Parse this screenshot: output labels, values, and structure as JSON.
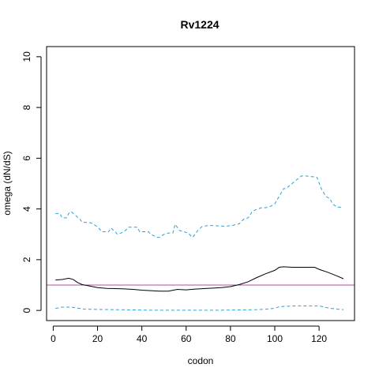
{
  "chart_data": {
    "type": "line",
    "title": "Rv1224",
    "xlabel": "codon",
    "ylabel": "omega (dN/dS)",
    "xlim": [
      -3,
      136
    ],
    "ylim": [
      -0.4,
      10.4
    ],
    "x_ticks": [
      0,
      20,
      40,
      60,
      80,
      100,
      120
    ],
    "y_ticks": [
      0,
      2,
      4,
      6,
      8,
      10
    ],
    "grid": false,
    "reference_line": {
      "y": 1,
      "color": "#b34db3"
    },
    "series": [
      {
        "role": "estimate",
        "style": "solid",
        "color": "#000000",
        "x": [
          1,
          4,
          7,
          9,
          11,
          13,
          16,
          20,
          24,
          28,
          32,
          36,
          40,
          44,
          48,
          52,
          56,
          60,
          64,
          68,
          72,
          76,
          80,
          84,
          88,
          92,
          96,
          100,
          102,
          104,
          108,
          112,
          116,
          118,
          120,
          124,
          128,
          131
        ],
        "y": [
          1.2,
          1.22,
          1.27,
          1.22,
          1.1,
          1.02,
          0.97,
          0.9,
          0.87,
          0.86,
          0.85,
          0.83,
          0.8,
          0.78,
          0.76,
          0.76,
          0.83,
          0.81,
          0.84,
          0.86,
          0.88,
          0.9,
          0.94,
          1.02,
          1.13,
          1.3,
          1.45,
          1.58,
          1.7,
          1.72,
          1.7,
          1.7,
          1.7,
          1.7,
          1.62,
          1.5,
          1.36,
          1.25
        ]
      },
      {
        "role": "upper",
        "style": "dashed",
        "color": "#2aa1dc",
        "x": [
          1,
          3,
          4,
          6,
          7,
          8,
          10,
          12,
          13,
          17,
          18,
          20,
          22,
          25,
          26,
          28,
          29,
          32,
          34,
          38,
          39,
          43,
          44,
          47,
          48,
          50,
          52,
          54,
          55,
          57,
          59,
          61,
          62,
          63,
          65,
          67,
          70,
          78,
          81,
          84,
          86,
          88,
          90,
          94,
          96,
          98,
          100,
          101,
          104,
          105,
          112,
          114,
          119,
          121,
          123,
          125,
          126,
          128,
          131
        ],
        "y": [
          3.82,
          3.82,
          3.65,
          3.65,
          3.82,
          3.9,
          3.75,
          3.6,
          3.48,
          3.45,
          3.4,
          3.3,
          3.1,
          3.1,
          3.25,
          3.1,
          3.0,
          3.1,
          3.28,
          3.28,
          3.1,
          3.1,
          3.0,
          2.88,
          2.88,
          3.0,
          3.05,
          3.05,
          3.4,
          3.15,
          3.1,
          3.05,
          2.95,
          2.88,
          3.12,
          3.3,
          3.35,
          3.32,
          3.35,
          3.42,
          3.6,
          3.65,
          3.92,
          4.05,
          4.05,
          4.1,
          4.2,
          4.35,
          4.8,
          4.8,
          5.3,
          5.3,
          5.25,
          4.8,
          4.5,
          4.4,
          4.2,
          4.08,
          4.05
        ]
      },
      {
        "role": "lower",
        "style": "dashed",
        "color": "#2aa1dc",
        "x": [
          1,
          4,
          8,
          12,
          14,
          20,
          28,
          36,
          44,
          52,
          60,
          68,
          76,
          84,
          92,
          96,
          100,
          102,
          110,
          120,
          124,
          128,
          131
        ],
        "y": [
          0.08,
          0.13,
          0.13,
          0.08,
          0.05,
          0.04,
          0.03,
          0.02,
          0.01,
          0.01,
          0.01,
          0.01,
          0.01,
          0.02,
          0.03,
          0.05,
          0.08,
          0.15,
          0.18,
          0.18,
          0.1,
          0.05,
          0.03
        ]
      }
    ]
  }
}
